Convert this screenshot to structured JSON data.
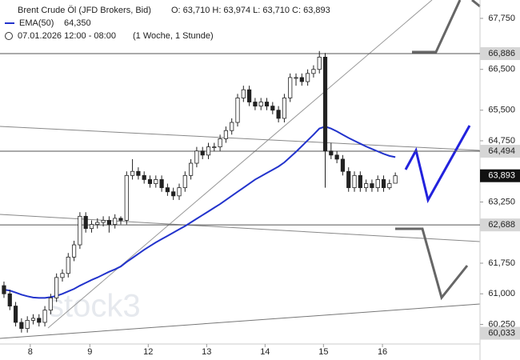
{
  "chart_data": {
    "type": "candlestick",
    "title": "Brent Crude Öl (JFD Brokers, Bid)",
    "quote": "O: 63,710  H: 63,974  L: 63,710  C: 63,893",
    "date_range": "07.01.2026 12:00 - 08:00",
    "period": "(1 Woche, 1 Stunde)",
    "ohlc": [
      [
        61.2,
        61.3,
        60.9,
        61.0
      ],
      [
        61.0,
        61.1,
        60.6,
        60.7
      ],
      [
        60.7,
        60.8,
        60.2,
        60.3
      ],
      [
        60.3,
        60.4,
        60.05,
        60.15
      ],
      [
        60.15,
        60.45,
        60.05,
        60.35
      ],
      [
        60.35,
        60.5,
        60.25,
        60.4
      ],
      [
        60.4,
        60.5,
        60.2,
        60.3
      ],
      [
        60.3,
        60.7,
        60.2,
        60.6
      ],
      [
        60.6,
        61.0,
        60.5,
        60.9
      ],
      [
        60.9,
        61.5,
        60.8,
        61.4
      ],
      [
        61.4,
        61.6,
        61.3,
        61.5
      ],
      [
        61.5,
        62.0,
        61.4,
        61.9
      ],
      [
        61.9,
        62.3,
        61.8,
        62.2
      ],
      [
        62.2,
        63.0,
        62.1,
        62.9
      ],
      [
        62.9,
        63.0,
        62.5,
        62.6
      ],
      [
        62.6,
        62.8,
        62.5,
        62.7
      ],
      [
        62.7,
        62.85,
        62.6,
        62.75
      ],
      [
        62.75,
        62.9,
        62.65,
        62.8
      ],
      [
        62.8,
        62.9,
        62.5,
        62.7
      ],
      [
        62.7,
        62.95,
        62.6,
        62.85
      ],
      [
        62.85,
        62.9,
        62.7,
        62.8
      ],
      [
        62.8,
        64.0,
        62.7,
        63.9
      ],
      [
        63.9,
        64.3,
        63.8,
        64.0
      ],
      [
        64.0,
        64.1,
        63.8,
        63.9
      ],
      [
        63.9,
        64.0,
        63.7,
        63.8
      ],
      [
        63.8,
        63.9,
        63.6,
        63.7
      ],
      [
        63.7,
        63.9,
        63.6,
        63.8
      ],
      [
        63.8,
        63.9,
        63.5,
        63.6
      ],
      [
        63.6,
        63.7,
        63.4,
        63.5
      ],
      [
        63.5,
        63.6,
        63.3,
        63.4
      ],
      [
        63.4,
        63.7,
        63.3,
        63.6
      ],
      [
        63.6,
        64.0,
        63.5,
        63.9
      ],
      [
        63.9,
        64.3,
        63.8,
        64.2
      ],
      [
        64.2,
        64.6,
        64.1,
        64.5
      ],
      [
        64.5,
        64.6,
        64.3,
        64.4
      ],
      [
        64.4,
        64.7,
        64.3,
        64.6
      ],
      [
        64.6,
        64.7,
        64.5,
        64.6
      ],
      [
        64.6,
        64.9,
        64.5,
        64.8
      ],
      [
        64.8,
        65.1,
        64.7,
        65.0
      ],
      [
        65.0,
        65.3,
        64.9,
        65.2
      ],
      [
        65.2,
        65.9,
        65.1,
        65.8
      ],
      [
        65.8,
        66.1,
        65.7,
        66.0
      ],
      [
        66.0,
        66.1,
        65.6,
        65.7
      ],
      [
        65.7,
        65.8,
        65.5,
        65.6
      ],
      [
        65.6,
        65.8,
        65.5,
        65.7
      ],
      [
        65.7,
        65.8,
        65.5,
        65.6
      ],
      [
        65.6,
        65.7,
        65.4,
        65.5
      ],
      [
        65.5,
        65.6,
        65.2,
        65.3
      ],
      [
        65.3,
        65.9,
        65.2,
        65.8
      ],
      [
        65.8,
        66.4,
        65.7,
        66.3
      ],
      [
        66.3,
        66.4,
        66.1,
        66.3
      ],
      [
        66.3,
        66.4,
        66.1,
        66.2
      ],
      [
        66.2,
        66.5,
        66.1,
        66.4
      ],
      [
        66.4,
        66.6,
        66.3,
        66.5
      ],
      [
        66.5,
        66.95,
        66.4,
        66.8
      ],
      [
        66.8,
        66.9,
        63.6,
        64.5
      ],
      [
        64.5,
        64.7,
        64.3,
        64.4
      ],
      [
        64.4,
        64.5,
        64.2,
        64.3
      ],
      [
        64.3,
        64.4,
        63.9,
        64.0
      ],
      [
        64.0,
        64.1,
        63.5,
        63.6
      ],
      [
        63.6,
        64.0,
        63.5,
        63.9
      ],
      [
        63.9,
        64.0,
        63.5,
        63.6
      ],
      [
        63.6,
        63.8,
        63.5,
        63.7
      ],
      [
        63.7,
        63.8,
        63.5,
        63.6
      ],
      [
        63.6,
        63.9,
        63.5,
        63.8
      ],
      [
        63.8,
        63.9,
        63.5,
        63.6
      ],
      [
        63.6,
        63.8,
        63.55,
        63.7
      ],
      [
        63.71,
        63.974,
        63.71,
        63.893
      ]
    ],
    "series": [
      {
        "name": "EMA(50)",
        "color": "#2233cc",
        "last_label": "64,350",
        "values": [
          61.1,
          61.08,
          61.03,
          60.98,
          60.94,
          60.91,
          60.9,
          60.9,
          60.92,
          60.95,
          61.0,
          61.06,
          61.12,
          61.2,
          61.27,
          61.34,
          61.4,
          61.47,
          61.54,
          61.6,
          61.67,
          61.78,
          61.88,
          61.98,
          62.08,
          62.17,
          62.26,
          62.34,
          62.42,
          62.5,
          62.58,
          62.66,
          62.75,
          62.84,
          62.93,
          63.02,
          63.11,
          63.2,
          63.3,
          63.4,
          63.5,
          63.6,
          63.7,
          63.8,
          63.88,
          63.96,
          64.04,
          64.12,
          64.22,
          64.35,
          64.48,
          64.62,
          64.76,
          64.9,
          65.05,
          65.1,
          65.05,
          64.98,
          64.9,
          64.82,
          64.75,
          64.68,
          64.61,
          64.55,
          64.49,
          64.43,
          64.38,
          64.35
        ]
      }
    ],
    "xlim": [
      -0.68,
      81.5
    ],
    "xticks": [
      {
        "value": 4.5,
        "label": "8"
      },
      {
        "value": 14.7,
        "label": "9"
      },
      {
        "value": 24.7,
        "label": "12"
      },
      {
        "value": 34.7,
        "label": "13"
      },
      {
        "value": 44.7,
        "label": "14"
      },
      {
        "value": 54.7,
        "label": "15"
      },
      {
        "value": 64.8,
        "label": "16"
      }
    ],
    "ylim": [
      59.77,
      68.2
    ],
    "yticks": [
      {
        "value": 67.75,
        "label": "67,750"
      },
      {
        "value": 66.5,
        "label": "66,500"
      },
      {
        "value": 65.5,
        "label": "65,500"
      },
      {
        "value": 64.75,
        "label": "64,750"
      },
      {
        "value": 63.25,
        "label": "63,250"
      },
      {
        "value": 61.75,
        "label": "61,750"
      },
      {
        "value": 61,
        "label": "61,000"
      },
      {
        "value": 60.25,
        "label": "60,250"
      }
    ],
    "levels": [
      {
        "value": 66.886,
        "label": "66,886"
      },
      {
        "value": 64.494,
        "label": "64,494"
      },
      {
        "value": 62.688,
        "label": "62,688"
      },
      {
        "value": 60.033,
        "label": "60,033"
      }
    ],
    "last_price": {
      "value": 63.893,
      "label": "63,893"
    }
  }
}
